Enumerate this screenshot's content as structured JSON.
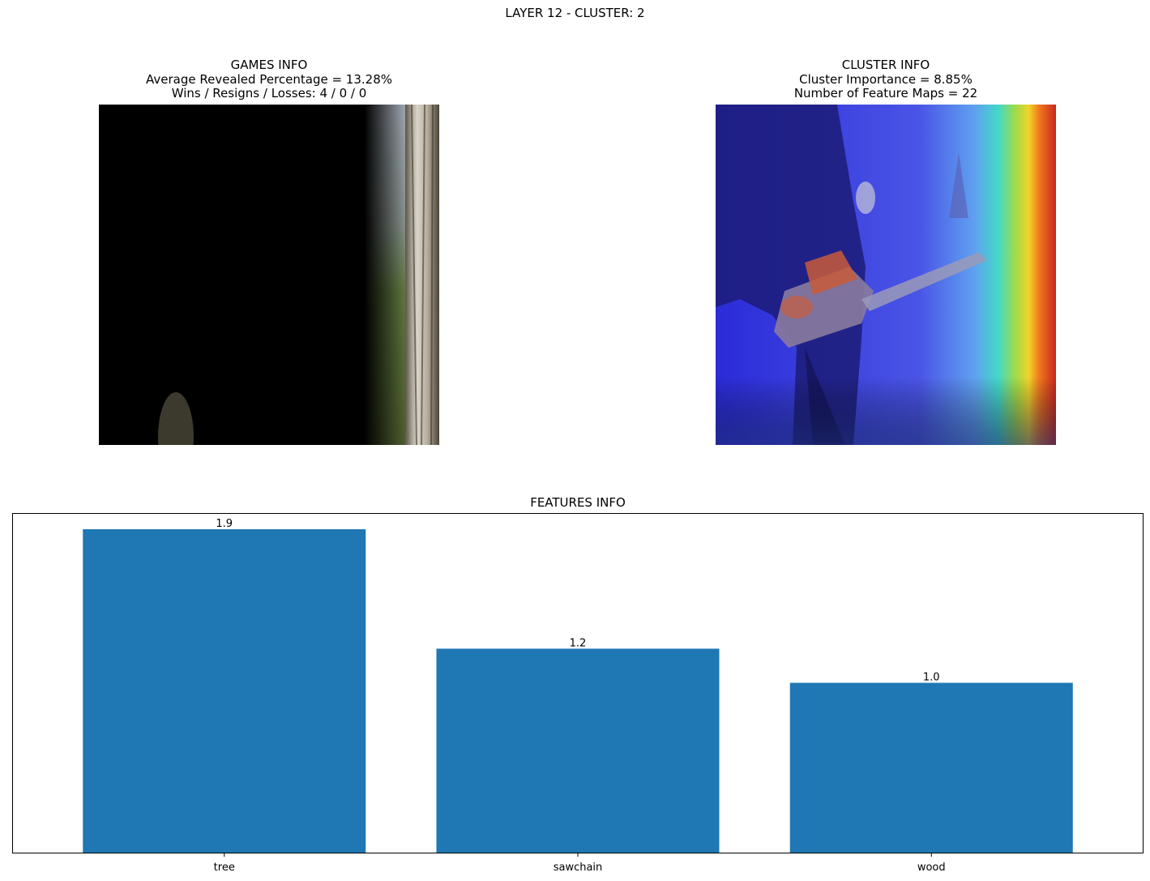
{
  "figure": {
    "suptitle": "LAYER 12 - CLUSTER: 2"
  },
  "games_info": {
    "title": "GAMES INFO",
    "line1": "Average Revealed Percentage = 13.28%",
    "line2": "Wins / Resigns / Losses: 4 / 0 / 0"
  },
  "cluster_info": {
    "title": "CLUSTER INFO",
    "line1": "Cluster Importance = 8.85%",
    "line2": "Number of Feature Maps = 22"
  },
  "colors": {
    "bar": "#1f77b4"
  },
  "chart_data": {
    "type": "bar",
    "title": "FEATURES INFO",
    "categories": [
      "tree",
      "sawchain",
      "wood"
    ],
    "values": [
      1.9,
      1.2,
      1.0
    ],
    "value_labels": [
      "1.9",
      "1.2",
      "1.0"
    ],
    "xlabel": "",
    "ylabel": "",
    "ylim": [
      0,
      1.995
    ],
    "y_axis_visible": false,
    "grid": false
  }
}
